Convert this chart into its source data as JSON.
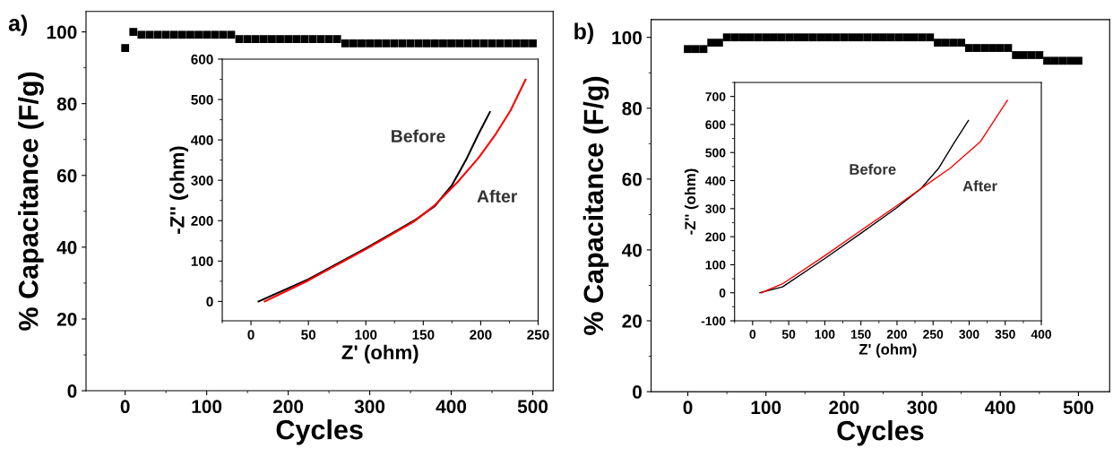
{
  "chart_data": [
    {
      "type": "scatter",
      "title": "a)",
      "xlabel": "Cycles",
      "ylabel": "% Capacitance (F/g)",
      "marker": "square",
      "color": "#000000",
      "x": [
        0,
        10,
        20,
        30,
        40,
        50,
        60,
        70,
        80,
        90,
        100,
        110,
        120,
        130,
        140,
        150,
        160,
        170,
        180,
        190,
        200,
        210,
        220,
        230,
        240,
        250,
        260,
        270,
        280,
        290,
        300,
        310,
        320,
        330,
        340,
        350,
        360,
        370,
        380,
        390,
        400,
        410,
        420,
        430,
        440,
        450,
        460,
        470,
        480,
        490,
        500
      ],
      "values": [
        95.5,
        100,
        99.2,
        99.2,
        99.2,
        99.2,
        99.2,
        99.2,
        99.2,
        99.2,
        99.2,
        99.2,
        99.2,
        99.2,
        98.0,
        98.0,
        98.0,
        98.0,
        98.0,
        98.0,
        98.0,
        98.0,
        98.0,
        98.0,
        98.0,
        98.0,
        98.0,
        96.8,
        96.8,
        96.8,
        96.8,
        96.8,
        96.8,
        96.8,
        96.8,
        96.8,
        96.8,
        96.8,
        96.8,
        96.8,
        96.8,
        96.8,
        96.8,
        96.8,
        96.8,
        96.8,
        96.8,
        96.8,
        96.8,
        96.8,
        96.8
      ],
      "xlim": [
        -48,
        525
      ],
      "ylim": [
        0,
        105.7
      ],
      "xticks": [
        0,
        100,
        200,
        300,
        400,
        500
      ],
      "yticks": [
        0,
        20,
        40,
        60,
        80,
        100
      ]
    },
    {
      "type": "line",
      "xlabel": "Z' (ohm)",
      "ylabel": "-Z'' (ohm)",
      "xlim": [
        -25,
        250
      ],
      "ylim": [
        -48,
        600
      ],
      "xticks": [
        0,
        50,
        100,
        150,
        200,
        250
      ],
      "yticks": [
        0,
        100,
        200,
        300,
        400,
        500,
        600
      ],
      "series": [
        {
          "color": "#000000",
          "x": [
            6.6,
            50,
            101,
            142,
            160,
            175,
            188,
            198,
            208
          ],
          "values": [
            0,
            55,
            133,
            200,
            236,
            288,
            355,
            414,
            469
          ]
        },
        {
          "color": "#ff0000",
          "x": [
            12,
            50,
            101,
            142,
            160,
            180,
            198,
            213,
            226,
            239
          ],
          "values": [
            0,
            52,
            131,
            198,
            238,
            296,
            355,
            414,
            473,
            549
          ]
        }
      ],
      "annotations": [
        "Before",
        "After"
      ]
    },
    {
      "type": "scatter",
      "title": "b)",
      "xlabel": "Cycles",
      "ylabel": "% Capacitance (F/g)",
      "marker": "square",
      "color": "#000000",
      "x": [
        0,
        10,
        20,
        30,
        40,
        50,
        60,
        70,
        80,
        90,
        100,
        110,
        120,
        130,
        140,
        150,
        160,
        170,
        180,
        190,
        200,
        210,
        220,
        230,
        240,
        250,
        260,
        270,
        280,
        290,
        300,
        310,
        320,
        330,
        340,
        350,
        360,
        370,
        380,
        390,
        400,
        410,
        420,
        430,
        440,
        450,
        460,
        470,
        480,
        490,
        500
      ],
      "values": [
        96.7,
        96.7,
        96.7,
        98.5,
        98.5,
        100,
        100,
        100,
        100,
        100,
        100,
        100,
        100,
        100,
        100,
        100,
        100,
        100,
        100,
        100,
        100,
        100,
        100,
        100,
        100,
        100,
        100,
        100,
        100,
        100,
        100,
        100,
        98.5,
        98.5,
        98.5,
        98.5,
        97,
        97,
        97,
        97,
        97,
        97,
        95,
        95,
        95,
        95,
        93.4,
        93.4,
        93.4,
        93.4,
        93.4
      ],
      "xlim": [
        -47,
        540
      ],
      "ylim": [
        0,
        105
      ],
      "xticks": [
        0,
        100,
        200,
        300,
        400,
        500
      ],
      "yticks": [
        0,
        20,
        40,
        60,
        80,
        100
      ]
    },
    {
      "type": "line",
      "xlabel": "Z' (ohm)",
      "ylabel": "-Z'' (ohm)",
      "xlim": [
        -25,
        400
      ],
      "ylim": [
        -100,
        750
      ],
      "xticks": [
        0,
        50,
        100,
        150,
        200,
        250,
        300,
        350,
        400
      ],
      "yticks": [
        -100,
        0,
        100,
        200,
        300,
        400,
        500,
        600,
        700
      ],
      "series": [
        {
          "color": "#000000",
          "x": [
            10,
            41.5,
            100,
            150,
            199,
            233,
            258,
            278,
            299
          ],
          "values": [
            0,
            21,
            122,
            212,
            302,
            371,
            445,
            530,
            614
          ]
        },
        {
          "color": "#ff0000",
          "x": [
            12,
            41.5,
            100,
            150,
            199,
            233,
            274,
            316,
            353
          ],
          "values": [
            0,
            32,
            132,
            222,
            309,
            371,
            445,
            540,
            686
          ]
        }
      ],
      "annotations": [
        "Before",
        "After"
      ]
    }
  ]
}
